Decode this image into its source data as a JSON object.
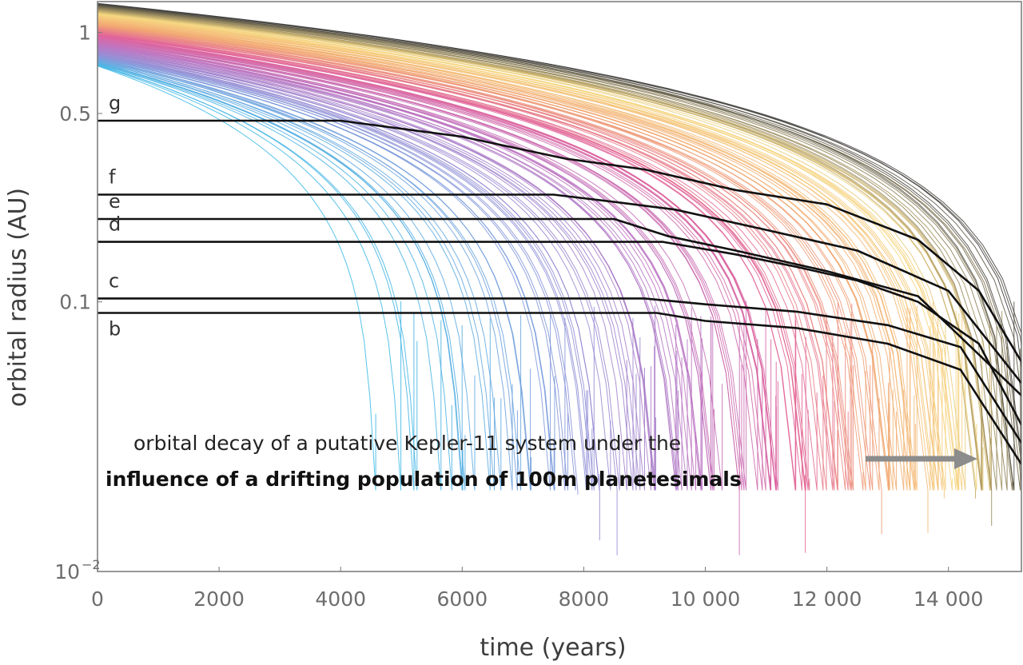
{
  "chart_data": {
    "type": "line",
    "title": "",
    "xlabel": "time (years)",
    "ylabel": "orbital radius (AU)",
    "xscale": "linear",
    "yscale": "log",
    "xlim": [
      0,
      15200
    ],
    "ylim": [
      0.01,
      1.3
    ],
    "x_ticks": [
      {
        "value": 0,
        "label": "0"
      },
      {
        "value": 2000,
        "label": "2000"
      },
      {
        "value": 4000,
        "label": "4000"
      },
      {
        "value": 6000,
        "label": "6000"
      },
      {
        "value": 8000,
        "label": "8000"
      },
      {
        "value": 10000,
        "label": "10 000"
      },
      {
        "value": 12000,
        "label": "12 000"
      },
      {
        "value": 14000,
        "label": "14 000"
      }
    ],
    "y_ticks": [
      {
        "value": 1,
        "label": "1"
      },
      {
        "value": 0.5,
        "label": "0.5"
      },
      {
        "value": 0.1,
        "label": "0.1"
      },
      {
        "value": 0.01,
        "label": "10",
        "exponent": "−2"
      }
    ],
    "planets": [
      {
        "name": "g",
        "values": [
          [
            0,
            0.47
          ],
          [
            4000,
            0.47
          ],
          [
            6000,
            0.41
          ],
          [
            7700,
            0.34
          ],
          [
            9000,
            0.31
          ],
          [
            10500,
            0.26
          ],
          [
            12000,
            0.23
          ],
          [
            13500,
            0.17
          ],
          [
            14500,
            0.11
          ],
          [
            15200,
            0.06
          ]
        ]
      },
      {
        "name": "f",
        "values": [
          [
            0,
            0.25
          ],
          [
            7500,
            0.25
          ],
          [
            8500,
            0.235
          ],
          [
            9500,
            0.22
          ],
          [
            11000,
            0.185
          ],
          [
            12500,
            0.155
          ],
          [
            14000,
            0.11
          ],
          [
            15200,
            0.05
          ]
        ]
      },
      {
        "name": "e",
        "values": [
          [
            0,
            0.203
          ],
          [
            8500,
            0.203
          ],
          [
            9400,
            0.175
          ],
          [
            10500,
            0.155
          ],
          [
            12000,
            0.13
          ],
          [
            13500,
            0.105
          ],
          [
            15200,
            0.045
          ]
        ]
      },
      {
        "name": "d",
        "values": [
          [
            0,
            0.167
          ],
          [
            9300,
            0.167
          ],
          [
            10500,
            0.15
          ],
          [
            11500,
            0.135
          ],
          [
            12500,
            0.12
          ],
          [
            13500,
            0.1
          ],
          [
            14500,
            0.07
          ],
          [
            15200,
            0.035
          ]
        ]
      },
      {
        "name": "c",
        "values": [
          [
            0,
            0.103
          ],
          [
            9000,
            0.103
          ],
          [
            10000,
            0.098
          ],
          [
            11500,
            0.092
          ],
          [
            13000,
            0.082
          ],
          [
            14200,
            0.068
          ],
          [
            15200,
            0.03
          ]
        ]
      },
      {
        "name": "b",
        "values": [
          [
            0,
            0.091
          ],
          [
            9200,
            0.091
          ],
          [
            10000,
            0.085
          ],
          [
            11500,
            0.08
          ],
          [
            13000,
            0.07
          ],
          [
            14200,
            0.056
          ],
          [
            15200,
            0.025
          ]
        ]
      }
    ],
    "planetesimals": {
      "count_drawn": 150,
      "initial_radius_range": [
        0.75,
        1.28
      ],
      "color_scale": [
        "#38b8e6",
        "#8a8ed6",
        "#b970c0",
        "#e05c96",
        "#f1a36b",
        "#f6d67a",
        "#333333"
      ]
    },
    "annotation": {
      "line1": "orbital decay of a putative Kepler-11 system under the",
      "line2": "influence of a drifting population of 100m planetesimals",
      "arrow_direction": "right"
    }
  }
}
